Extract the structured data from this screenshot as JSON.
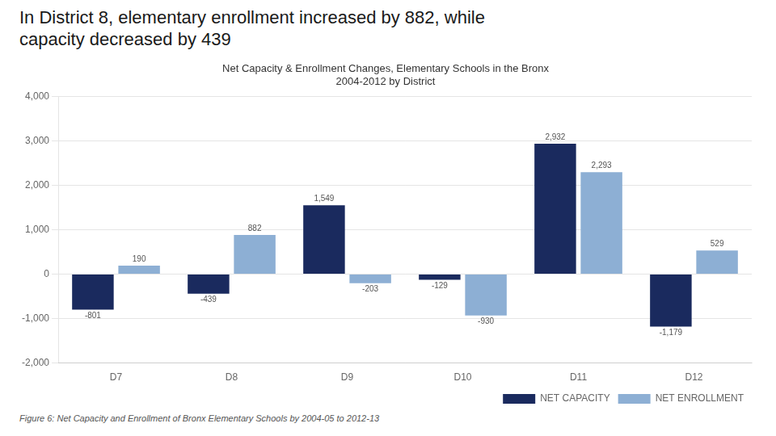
{
  "chart_data": {
    "type": "bar",
    "title": "Net Capacity & Enrollment Changes, Elementary Schools in the Bronx\n2004-2012 by District",
    "annotations": [
      "In District 8, elementary enrollment increased by 882, while\ncapacity decreased by 439",
      "Figure 6: Net Capacity and Enrollment of Bronx Elementary Schools by 2004-05 to 2012-13"
    ],
    "categories": [
      "D7",
      "D8",
      "D9",
      "D10",
      "D11",
      "D12"
    ],
    "series": [
      {
        "name": "NET CAPACITY",
        "color": "#1a2a5e",
        "values": [
          -801,
          -439,
          1549,
          -129,
          2932,
          -1179
        ],
        "value_labels": [
          "-801",
          "-439",
          "1,549",
          "-129",
          "2,932",
          "-1,179"
        ]
      },
      {
        "name": "NET ENROLLMENT",
        "color": "#8dafd4",
        "values": [
          190,
          882,
          -203,
          -930,
          2293,
          529
        ],
        "value_labels": [
          "190",
          "882",
          "-203",
          "-930",
          "2,293",
          "529"
        ]
      }
    ],
    "ylim": [
      -2000,
      4000
    ],
    "yticks": [
      {
        "value": -2000,
        "label": "-2,000"
      },
      {
        "value": -1000,
        "label": "-1,000"
      },
      0,
      {
        "value": 1000,
        "label": "1,000"
      },
      {
        "value": 2000,
        "label": "2,000"
      },
      {
        "value": 3000,
        "label": "3,000"
      },
      {
        "value": 4000,
        "label": "4,000"
      }
    ],
    "grid": true,
    "legend": "lower right",
    "data_labels": true
  }
}
